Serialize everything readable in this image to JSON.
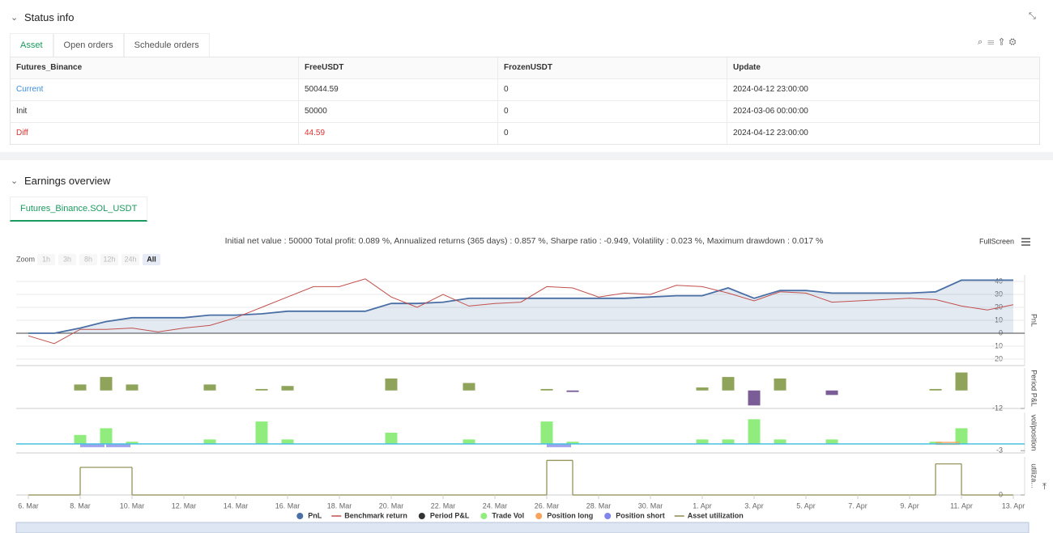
{
  "status": {
    "title": "Status info",
    "tabs": [
      "Asset",
      "Open orders",
      "Schedule orders"
    ],
    "table": {
      "header": [
        "Futures_Binance",
        "FreeUSDT",
        "FrozenUSDT",
        "Update"
      ],
      "rows": [
        [
          "Current",
          "50044.59",
          "0",
          "2024-04-12 23:00:00"
        ],
        [
          "Init",
          "50000",
          "0",
          "2024-03-06 00:00:00"
        ],
        [
          "Diff",
          "44.59",
          "0",
          "2024-04-12 23:00:00"
        ]
      ]
    }
  },
  "earnings": {
    "title": "Earnings overview",
    "tab": "Futures_Binance.SOL_USDT",
    "summary": "Initial net value : 50000 Total profit: 0.089 %, Annualized returns (365 days) : 0.857 %, Sharpe ratio : -0.949, Volatility : 0.023 %, Maximum drawdown : 0.017 %",
    "fullscreen": "FullScreen",
    "zoom": {
      "label": "Zoom",
      "options": [
        "1h",
        "3h",
        "8h",
        "12h",
        "24h",
        "All"
      ]
    }
  },
  "chart_data": [
    {
      "type": "line",
      "y_label": "PnL",
      "ylim": [
        -25,
        45
      ],
      "yticks": [
        -20,
        -10,
        0,
        10,
        20,
        30,
        40
      ],
      "grid": true,
      "series": [
        {
          "name": "PnL",
          "color": "#4a6fa5",
          "area": true,
          "values": [
            0,
            0,
            4,
            9,
            12,
            12,
            12,
            14,
            14,
            15,
            17,
            17,
            17,
            17,
            23,
            23,
            24,
            27,
            27,
            27,
            27,
            27,
            27,
            27,
            28,
            29,
            29,
            35,
            27,
            33,
            33,
            31,
            31,
            31,
            31,
            32,
            41,
            41,
            41
          ]
        },
        {
          "name": "Benchmark return",
          "color": "#c0504d",
          "values": [
            -2,
            -8,
            3,
            3,
            4,
            1,
            4,
            6,
            12,
            20,
            28,
            36,
            36,
            42,
            28,
            20,
            30,
            21,
            23,
            24,
            36,
            35,
            28,
            31,
            30,
            37,
            36,
            31,
            25,
            32,
            31,
            24,
            25,
            26,
            27,
            26,
            21,
            18,
            22
          ]
        }
      ]
    },
    {
      "type": "bar",
      "y_label": "Period P&L",
      "ylim": [
        -12,
        15
      ],
      "yticks": [
        -12
      ],
      "series": [
        {
          "name": "Period P&L",
          "color": "#333333",
          "positive_color": "#8fa35a",
          "negative_color": "#7a5c96",
          "values": [
            null,
            null,
            4,
            9,
            4,
            null,
            null,
            4,
            null,
            1,
            3,
            null,
            null,
            null,
            8,
            null,
            null,
            5,
            null,
            null,
            1,
            -1,
            null,
            null,
            null,
            null,
            2,
            9,
            -10,
            8,
            null,
            -3,
            null,
            null,
            null,
            1,
            12,
            null,
            null
          ]
        }
      ]
    },
    {
      "type": "bar",
      "y_label": "vol/position",
      "ylim": [
        -4,
        14
      ],
      "yticks": [
        -3
      ],
      "series": [
        {
          "name": "Trade Vol",
          "color": "#90ed7d",
          "values": [
            null,
            null,
            4,
            7,
            1,
            null,
            null,
            2,
            null,
            10,
            2,
            null,
            null,
            null,
            5,
            null,
            null,
            2,
            null,
            null,
            10,
            1,
            null,
            null,
            null,
            null,
            2,
            2,
            11,
            2,
            null,
            2,
            null,
            null,
            null,
            1,
            7,
            null,
            null
          ]
        },
        {
          "name": "Position long",
          "color": "#f7a35c",
          "values": [
            null,
            null,
            null,
            null,
            null,
            null,
            null,
            null,
            null,
            null,
            null,
            null,
            null,
            null,
            null,
            null,
            null,
            null,
            null,
            null,
            null,
            null,
            null,
            null,
            null,
            null,
            null,
            null,
            null,
            null,
            null,
            null,
            null,
            null,
            null,
            1,
            null,
            null,
            null
          ]
        },
        {
          "name": "Position short",
          "color": "#8085e9",
          "values": [
            null,
            null,
            -1,
            -1,
            null,
            null,
            null,
            null,
            null,
            null,
            null,
            null,
            null,
            null,
            null,
            null,
            null,
            null,
            null,
            null,
            -1,
            null,
            null,
            null,
            null,
            null,
            null,
            null,
            null,
            null,
            null,
            null,
            null,
            null,
            null,
            null,
            null,
            null,
            null
          ]
        }
      ]
    },
    {
      "type": "line",
      "y_label": "utiliza...",
      "ylim": [
        0,
        1.1
      ],
      "yticks": [
        0
      ],
      "categories": [
        "6. Mar",
        null,
        "8. Mar",
        null,
        "10. Mar",
        null,
        "12. Mar",
        null,
        "14. Mar",
        null,
        "16. Mar",
        null,
        "18. Mar",
        null,
        "20. Mar",
        null,
        "22. Mar",
        null,
        "24. Mar",
        null,
        "26. Mar",
        null,
        "28. Mar",
        null,
        "30. Mar",
        null,
        "1. Apr",
        null,
        "3. Apr",
        null,
        "5. Apr",
        null,
        "7. Apr",
        null,
        "9. Apr",
        null,
        "11. Apr",
        null,
        "13. Apr"
      ],
      "series": [
        {
          "name": "Asset utilization",
          "color": "#8d8b4f",
          "step": true,
          "values": [
            0,
            0,
            0.8,
            0.8,
            0,
            0,
            0,
            0,
            0,
            0,
            0,
            0,
            0,
            0,
            0,
            0,
            0,
            0,
            0,
            0,
            1,
            0,
            0,
            0,
            0,
            0,
            0,
            0,
            0,
            0,
            0,
            0,
            0,
            0,
            0,
            0.9,
            0,
            0,
            0
          ]
        }
      ]
    }
  ]
}
